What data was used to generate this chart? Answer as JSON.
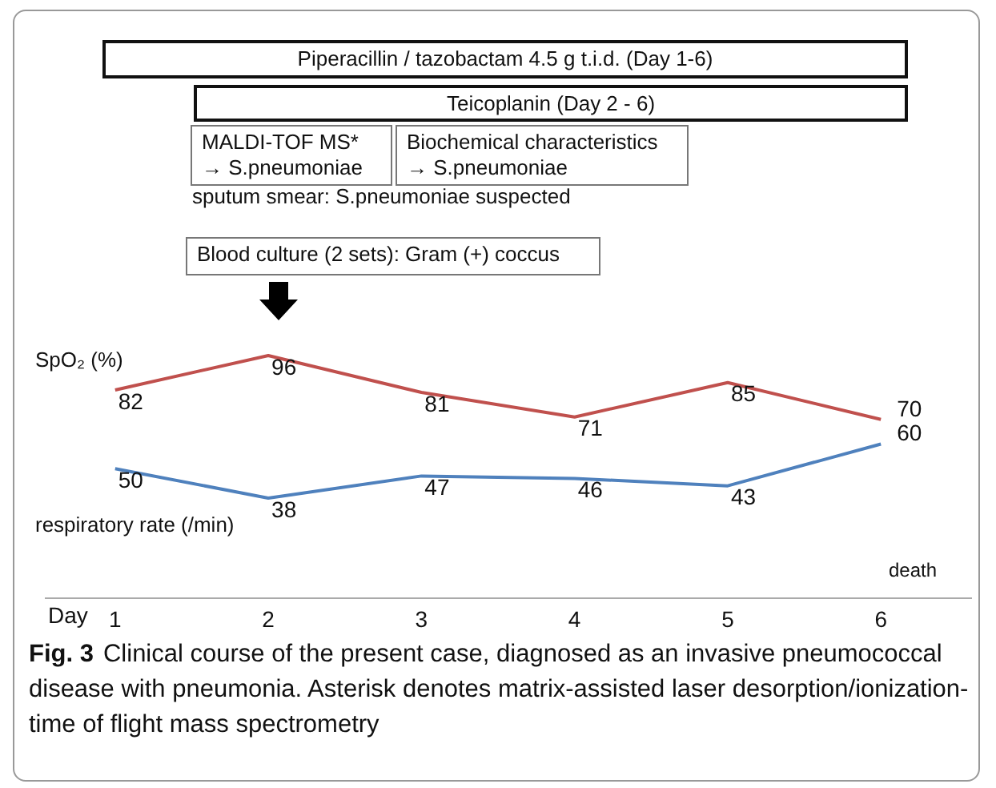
{
  "chart_data": {
    "type": "line",
    "title": "Fig. 3",
    "xlabel": "Day",
    "categories": [
      "1",
      "2",
      "3",
      "4",
      "5",
      "6"
    ],
    "series": [
      {
        "name": "SpO₂ (%)",
        "color": "#c0504d",
        "values": [
          82,
          96,
          81,
          71,
          85,
          70
        ]
      },
      {
        "name": "respiratory rate (/min)",
        "color": "#4f81bd",
        "values": [
          50,
          38,
          47,
          46,
          43,
          60
        ]
      }
    ],
    "tick_labels": "x",
    "data_labels": true,
    "legend": false,
    "grid": false,
    "marker": "none",
    "line_style": "solid",
    "annotations": [
      "Piperacillin / tazobactam 4.5 g t.i.d. (Day 1-6)",
      "Teicoplanin (Day 2 - 6)",
      "MALDI-TOF MS*\n→ S.pneumoniae",
      "Biochemical characteristics\n→ S.pneumoniae",
      "sputum smear: S.pneumoniae suspected",
      "Blood culture (2 sets): Gram (+) coccus",
      "death",
      "Clinical course of the present case, diagnosed as an invasive pneumococcal disease with pneumonia. Asterisk denotes matrix-assisted laser desorption/ionization-time of flight mass spectrometry"
    ]
  }
}
